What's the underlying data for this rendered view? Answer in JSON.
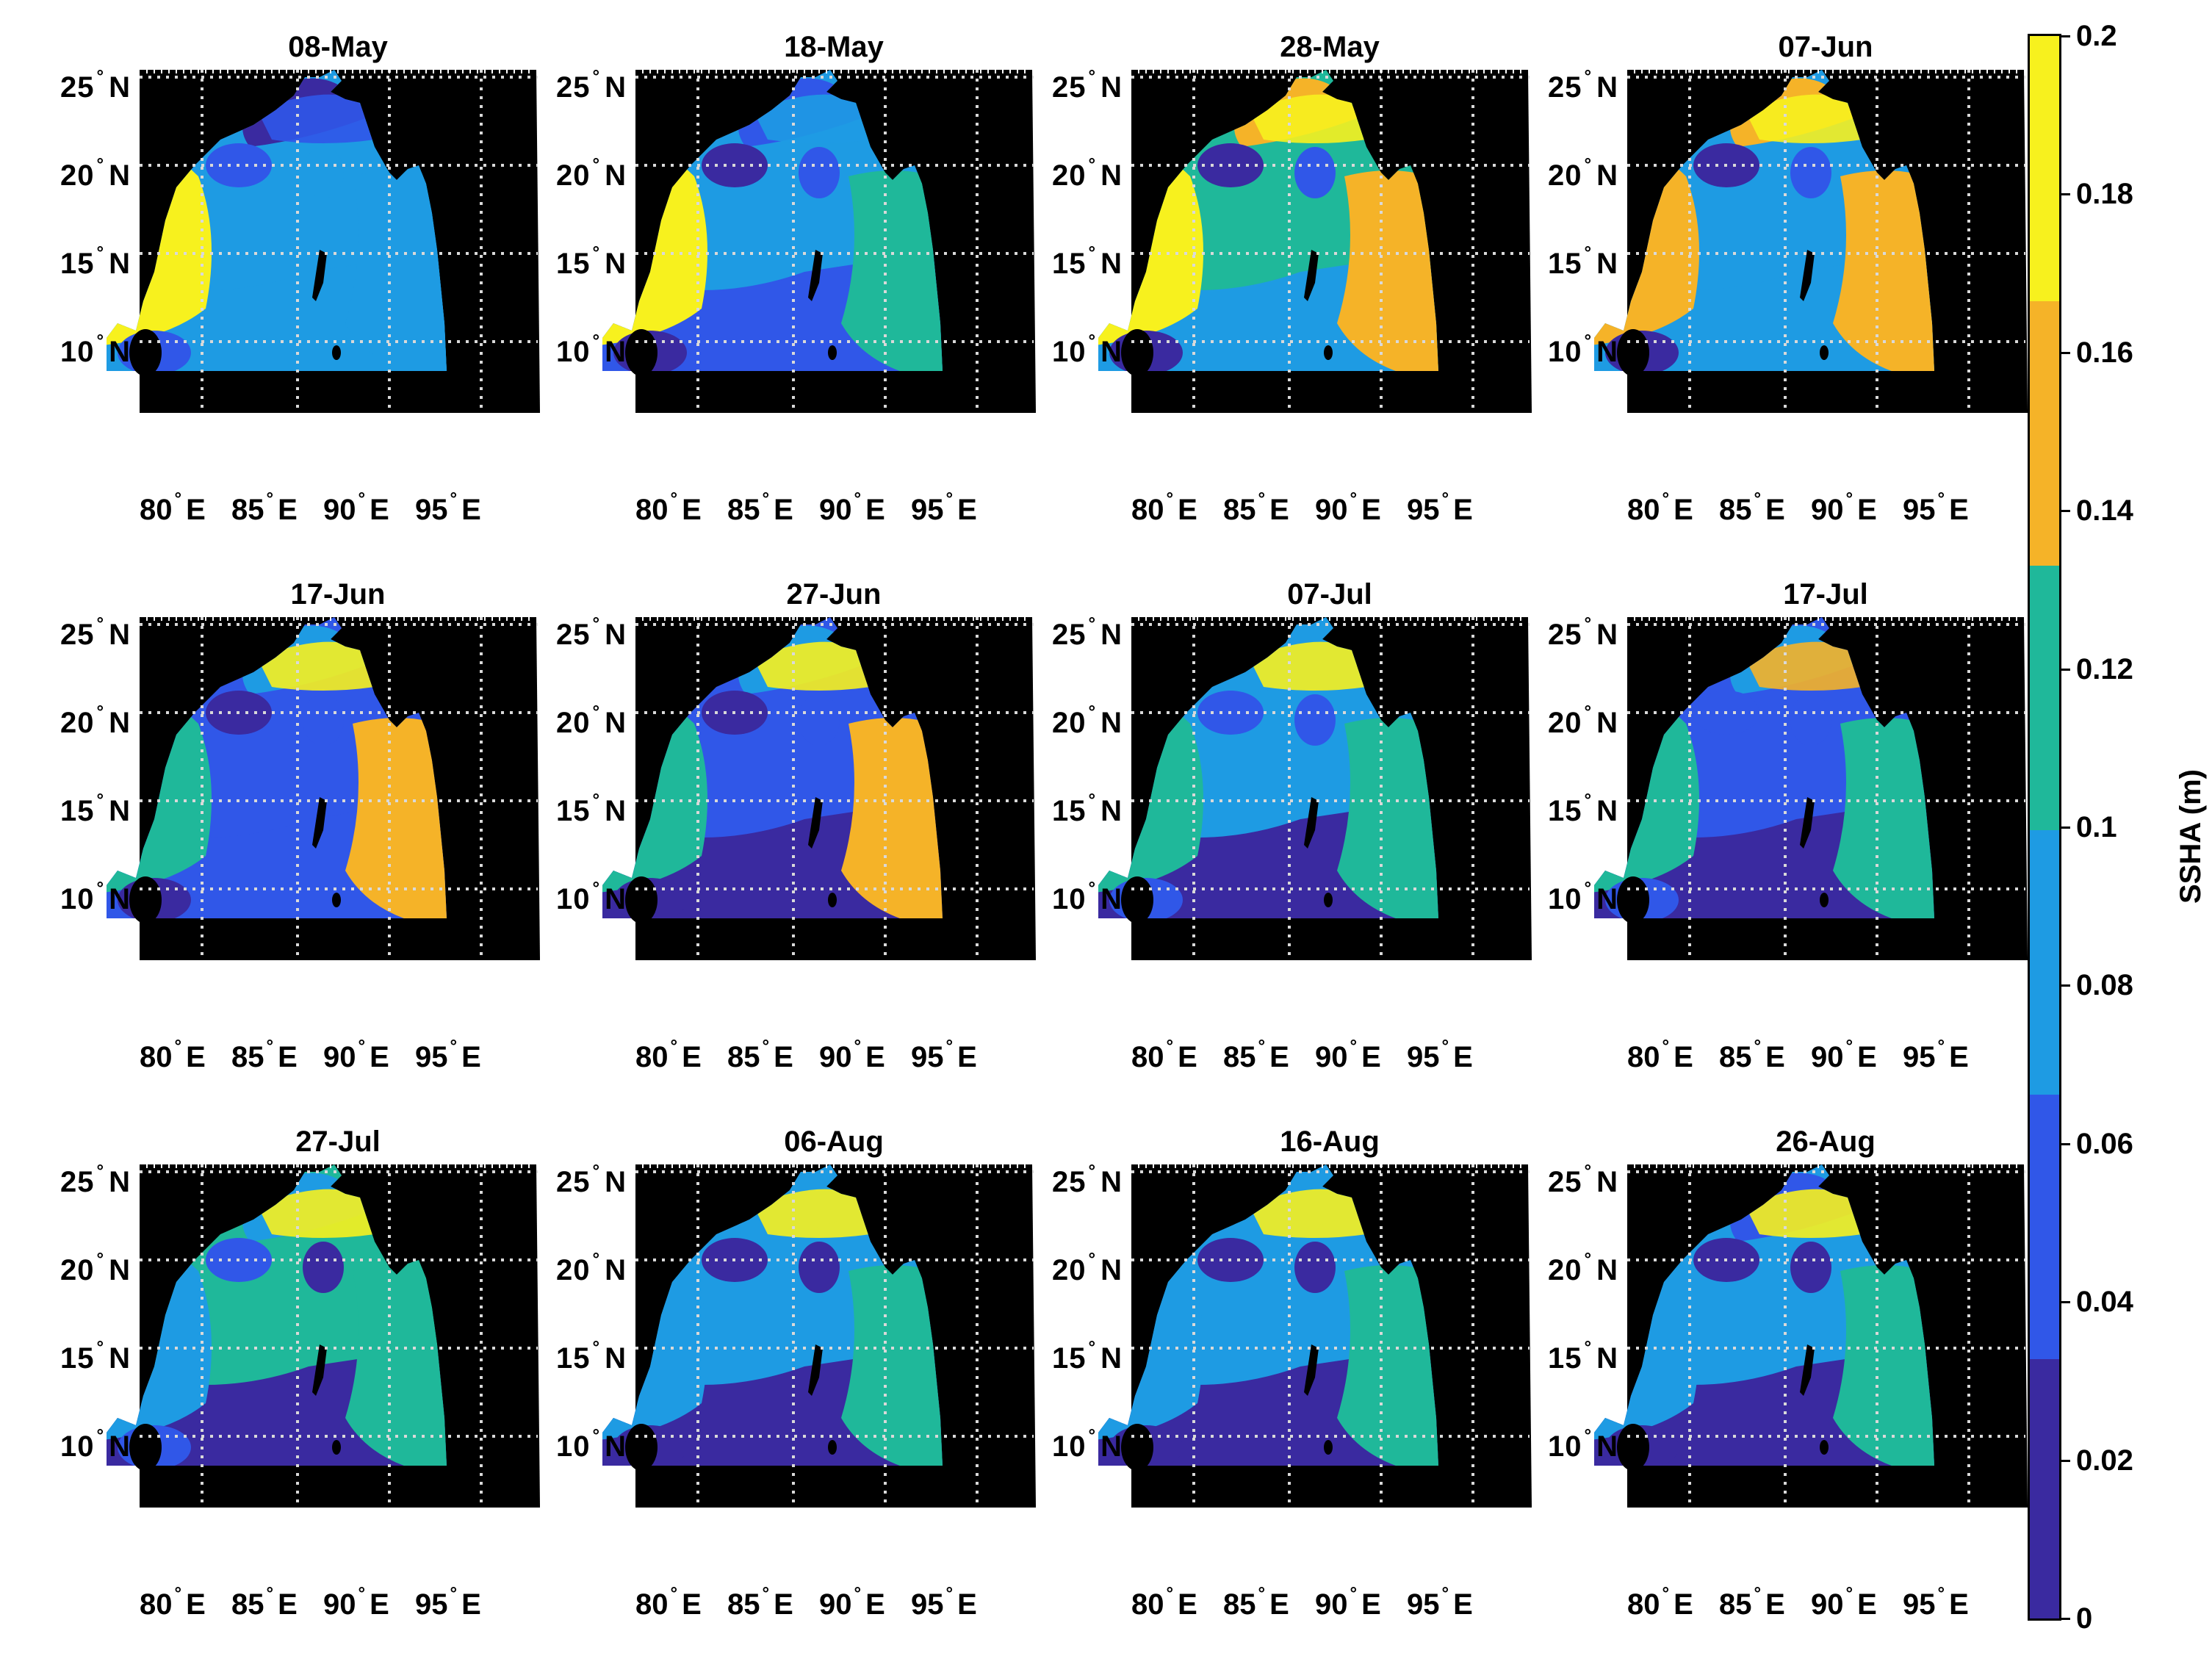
{
  "colors": {
    "land": "#000000",
    "grid": "#d9d9d9",
    "bins": [
      "#3a2aa0",
      "#3057e8",
      "#1e9be3",
      "#1fb89a",
      "#f5b328",
      "#f7f11e"
    ]
  },
  "lat_labels": [
    "25",
    "20",
    "15",
    "10"
  ],
  "lon_labels": [
    "80",
    "85",
    "90",
    "95"
  ],
  "lat_hemisphere": "N",
  "lon_hemisphere": "E",
  "degree_symbol": "°",
  "colorbar": {
    "label": "SSHA (m)",
    "ticks": [
      "0.2",
      "0.18",
      "0.16",
      "0.14",
      "0.12",
      "0.1",
      "0.08",
      "0.06",
      "0.04",
      "0.02",
      "0"
    ],
    "range": [
      0,
      0.2
    ]
  },
  "panels": [
    {
      "title": "08-May",
      "levels": {
        "west": 5,
        "north": 0,
        "center": 2,
        "east": 2,
        "south": 2,
        "coast": 1,
        "eddyA": 1,
        "eddyB": 2
      }
    },
    {
      "title": "18-May",
      "levels": {
        "west": 5,
        "north": 1,
        "center": 2,
        "east": 3,
        "south": 1,
        "coast": 2,
        "eddyA": 0,
        "eddyB": 1
      }
    },
    {
      "title": "28-May",
      "levels": {
        "west": 5,
        "north": 4,
        "center": 3,
        "east": 4,
        "south": 2,
        "coast": 5,
        "eddyA": 0,
        "eddyB": 1
      }
    },
    {
      "title": "07-Jun",
      "levels": {
        "west": 4,
        "north": 4,
        "center": 2,
        "east": 4,
        "south": 2,
        "coast": 5,
        "eddyA": 0,
        "eddyB": 1
      }
    },
    {
      "title": "17-Jun",
      "levels": {
        "west": 3,
        "north": 2,
        "center": 1,
        "east": 4,
        "south": 1,
        "coast": 5,
        "eddyA": 0,
        "eddyB": 1
      }
    },
    {
      "title": "27-Jun",
      "levels": {
        "west": 3,
        "north": 2,
        "center": 1,
        "east": 4,
        "south": 0,
        "coast": 5,
        "eddyA": 0,
        "eddyB": 1
      }
    },
    {
      "title": "07-Jul",
      "levels": {
        "west": 3,
        "north": 2,
        "center": 2,
        "east": 3,
        "south": 0,
        "coast": 5,
        "eddyA": 1,
        "eddyB": 1
      }
    },
    {
      "title": "17-Jul",
      "levels": {
        "west": 3,
        "north": 2,
        "center": 1,
        "east": 3,
        "south": 0,
        "coast": 4,
        "eddyA": 1,
        "eddyB": 1
      }
    },
    {
      "title": "27-Jul",
      "levels": {
        "west": 2,
        "north": 2,
        "center": 3,
        "east": 3,
        "south": 0,
        "coast": 5,
        "eddyA": 1,
        "eddyB": 0
      }
    },
    {
      "title": "06-Aug",
      "levels": {
        "west": 2,
        "north": 2,
        "center": 2,
        "east": 3,
        "south": 0,
        "coast": 5,
        "eddyA": 0,
        "eddyB": 0
      }
    },
    {
      "title": "16-Aug",
      "levels": {
        "west": 2,
        "north": 2,
        "center": 2,
        "east": 3,
        "south": 0,
        "coast": 5,
        "eddyA": 0,
        "eddyB": 0
      }
    },
    {
      "title": "26-Aug",
      "levels": {
        "west": 2,
        "north": 1,
        "center": 2,
        "east": 3,
        "south": 0,
        "coast": 5,
        "eddyA": 0,
        "eddyB": 0
      }
    }
  ]
}
